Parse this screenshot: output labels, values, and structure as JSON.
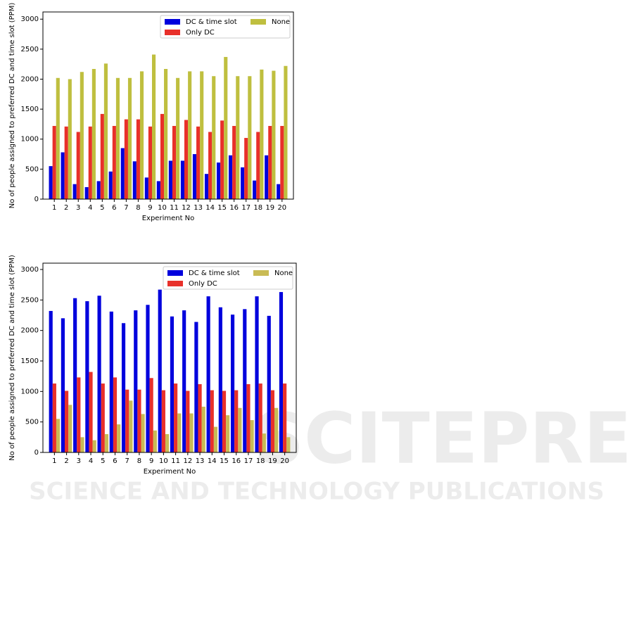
{
  "chart_data": [
    {
      "type": "bar",
      "xlabel": "Experiment No",
      "ylabel": "No of people assigned to preferred DC and time slot (PPM)",
      "categories": [
        "1",
        "2",
        "3",
        "4",
        "5",
        "6",
        "7",
        "8",
        "9",
        "10",
        "11",
        "12",
        "13",
        "14",
        "15",
        "16",
        "17",
        "18",
        "19",
        "20"
      ],
      "series": [
        {
          "name": "DC & time slot",
          "color": "#0000dd",
          "values": [
            550,
            780,
            250,
            200,
            300,
            460,
            850,
            630,
            360,
            300,
            640,
            640,
            750,
            420,
            610,
            730,
            530,
            310,
            730,
            250
          ]
        },
        {
          "name": "Only DC",
          "color": "#e8302a",
          "values": [
            1220,
            1210,
            1120,
            1210,
            1420,
            1220,
            1330,
            1330,
            1210,
            1420,
            1220,
            1320,
            1210,
            1120,
            1310,
            1220,
            1020,
            1120,
            1220,
            1220
          ]
        },
        {
          "name": "None",
          "color": "#bfbf3f",
          "values": [
            2020,
            2000,
            2120,
            2170,
            2260,
            2020,
            2020,
            2130,
            2410,
            2170,
            2020,
            2130,
            2130,
            2050,
            2370,
            2050,
            2050,
            2160,
            2140,
            2220
          ]
        }
      ],
      "ylim": [
        0,
        3120
      ],
      "yticks": [
        0,
        500,
        1000,
        1500,
        2000,
        2500,
        3000
      ],
      "legend": "upper right"
    },
    {
      "type": "bar",
      "xlabel": "Experiment No",
      "ylabel": "No of people assigned to preferred DC and time slot (PPM)",
      "categories": [
        "1",
        "2",
        "3",
        "4",
        "5",
        "6",
        "7",
        "8",
        "9",
        "10",
        "11",
        "12",
        "13",
        "14",
        "15",
        "16",
        "17",
        "18",
        "19",
        "20"
      ],
      "series": [
        {
          "name": "DC & time slot",
          "color": "#0000dd",
          "values": [
            2320,
            2200,
            2530,
            2480,
            2570,
            2310,
            2120,
            2330,
            2420,
            2670,
            2230,
            2330,
            2140,
            2560,
            2380,
            2260,
            2350,
            2560,
            2240,
            2630
          ]
        },
        {
          "name": "Only DC",
          "color": "#e8302a",
          "values": [
            1130,
            1010,
            1230,
            1320,
            1130,
            1230,
            1030,
            1030,
            1220,
            1020,
            1130,
            1010,
            1120,
            1020,
            1010,
            1020,
            1120,
            1130,
            1020,
            1130
          ]
        },
        {
          "name": "None",
          "color": "#c9bb55",
          "values": [
            550,
            780,
            250,
            200,
            300,
            460,
            850,
            630,
            360,
            300,
            640,
            640,
            750,
            420,
            610,
            730,
            530,
            310,
            730,
            250
          ]
        }
      ],
      "ylim": [
        0,
        3104
      ],
      "yticks": [
        0,
        500,
        1000,
        1500,
        2000,
        2500,
        3000
      ],
      "legend": "upper right"
    }
  ],
  "watermark": {
    "brand": "SCITEPRESS",
    "subtitle": "SCIENCE AND TECHNOLOGY PUBLICATIONS"
  }
}
